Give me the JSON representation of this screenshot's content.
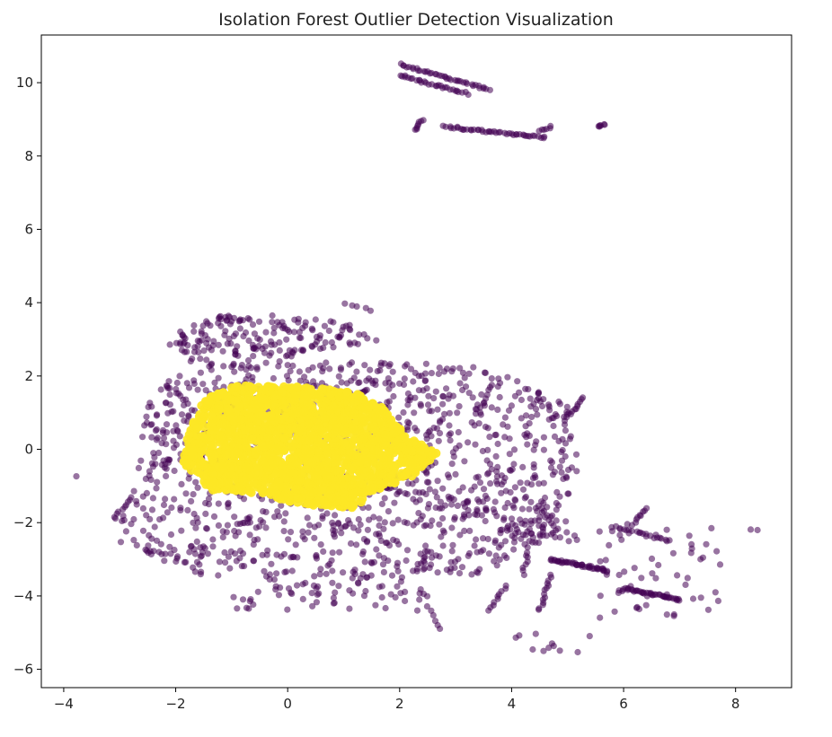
{
  "chart_data": {
    "type": "scatter",
    "title": "Isolation Forest Outlier Detection Visualization",
    "xlabel": "",
    "ylabel": "",
    "xlim": [
      -4.4,
      9.0
    ],
    "ylim": [
      -6.5,
      11.3
    ],
    "xticks": [
      -4,
      -2,
      0,
      2,
      4,
      6,
      8
    ],
    "yticks": [
      -6,
      -4,
      -2,
      0,
      2,
      4,
      6,
      8,
      10
    ],
    "xtick_labels": [
      "−4",
      "−2",
      "0",
      "2",
      "4",
      "6",
      "8"
    ],
    "ytick_labels": [
      "−6",
      "−4",
      "−2",
      "0",
      "2",
      "4",
      "6",
      "8",
      "10"
    ],
    "grid": false,
    "legend": "none",
    "colors": {
      "outlier": "#440154",
      "inlier": "#fde725"
    },
    "series": [
      {
        "role": "outlier",
        "regions": [
          {
            "kind": "polygon",
            "vertices": [
              [
                -3.1,
                -2.6
              ],
              [
                -2.8,
                -1.0
              ],
              [
                -2.5,
                1.2
              ],
              [
                -1.8,
                2.5
              ],
              [
                3.5,
                2.3
              ],
              [
                5.0,
                1.2
              ],
              [
                5.2,
                -0.5
              ],
              [
                4.8,
                -2.3
              ],
              [
                3.5,
                -3.4
              ],
              [
                0.5,
                -3.6
              ],
              [
                -1.5,
                -3.5
              ]
            ],
            "n": 1300
          },
          {
            "kind": "polygon",
            "vertices": [
              [
                -2.2,
                3.0
              ],
              [
                -1.5,
                3.6
              ],
              [
                -0.5,
                3.7
              ],
              [
                1.0,
                3.5
              ],
              [
                1.8,
                3.0
              ],
              [
                0.0,
                2.5
              ],
              [
                -2.0,
                2.6
              ]
            ],
            "n": 170
          },
          {
            "kind": "line",
            "from": [
              2.0,
              10.5
            ],
            "to": [
              3.6,
              9.8
            ],
            "n": 40
          },
          {
            "kind": "line",
            "from": [
              2.0,
              10.2
            ],
            "to": [
              3.2,
              9.7
            ],
            "n": 30
          },
          {
            "kind": "line",
            "from": [
              2.8,
              8.8
            ],
            "to": [
              4.6,
              8.5
            ],
            "n": 45
          },
          {
            "kind": "line",
            "from": [
              2.3,
              8.7
            ],
            "to": [
              2.4,
              9.0
            ],
            "n": 8
          },
          {
            "kind": "line",
            "from": [
              4.5,
              8.7
            ],
            "to": [
              4.7,
              8.8
            ],
            "n": 6
          },
          {
            "kind": "line",
            "from": [
              5.55,
              8.8
            ],
            "to": [
              5.65,
              8.85
            ],
            "n": 6
          },
          {
            "kind": "line",
            "from": [
              4.7,
              -3.0
            ],
            "to": [
              5.7,
              -3.3
            ],
            "n": 45
          },
          {
            "kind": "line",
            "from": [
              6.0,
              -3.8
            ],
            "to": [
              7.0,
              -4.1
            ],
            "n": 40
          },
          {
            "kind": "line",
            "from": [
              5.8,
              -2.1
            ],
            "to": [
              6.8,
              -2.5
            ],
            "n": 20
          },
          {
            "kind": "line",
            "from": [
              4.5,
              -4.4
            ],
            "to": [
              4.7,
              -3.4
            ],
            "n": 14
          },
          {
            "kind": "line",
            "from": [
              4.2,
              -3.4
            ],
            "to": [
              4.3,
              -2.8
            ],
            "n": 8
          },
          {
            "kind": "line",
            "from": [
              3.6,
              -4.4
            ],
            "to": [
              3.9,
              -3.7
            ],
            "n": 10
          },
          {
            "kind": "line",
            "from": [
              6.2,
              -2.0
            ],
            "to": [
              6.4,
              -1.6
            ],
            "n": 8
          },
          {
            "kind": "line",
            "from": [
              -3.1,
              -1.9
            ],
            "to": [
              -2.8,
              -1.3
            ],
            "n": 10
          },
          {
            "kind": "line",
            "from": [
              5.0,
              0.9
            ],
            "to": [
              5.3,
              1.4
            ],
            "n": 10
          },
          {
            "kind": "line",
            "from": [
              2.5,
              -4.3
            ],
            "to": [
              2.7,
              -4.9
            ],
            "n": 6
          },
          {
            "kind": "line",
            "from": [
              1.5,
              3.8
            ],
            "to": [
              1.0,
              4.0
            ],
            "n": 5
          },
          {
            "kind": "line",
            "from": [
              -3.8,
              -0.75
            ],
            "to": [
              -3.8,
              -0.75
            ],
            "n": 1
          },
          {
            "kind": "line",
            "from": [
              8.3,
              -2.2
            ],
            "to": [
              8.4,
              -2.2
            ],
            "n": 2
          },
          {
            "kind": "line",
            "from": [
              4.6,
              -5.5
            ],
            "to": [
              4.7,
              -5.3
            ],
            "n": 3
          },
          {
            "kind": "polygon",
            "vertices": [
              [
                3.8,
                -1.8
              ],
              [
                5.0,
                -1.9
              ],
              [
                5.2,
                -2.5
              ],
              [
                3.8,
                -2.6
              ]
            ],
            "n": 45
          },
          {
            "kind": "polygon",
            "vertices": [
              [
                5.5,
                -2.0
              ],
              [
                7.8,
                -2.0
              ],
              [
                7.8,
                -4.6
              ],
              [
                5.5,
                -4.6
              ]
            ],
            "n": 60
          },
          {
            "kind": "polygon",
            "vertices": [
              [
                -1.0,
                -3.6
              ],
              [
                2.5,
                -3.6
              ],
              [
                2.5,
                -4.4
              ],
              [
                -1.0,
                -4.4
              ]
            ],
            "n": 60
          },
          {
            "kind": "polygon",
            "vertices": [
              [
                4.0,
                -4.6
              ],
              [
                5.5,
                -4.6
              ],
              [
                5.5,
                -5.6
              ],
              [
                4.0,
                -5.6
              ]
            ],
            "n": 8
          }
        ]
      },
      {
        "role": "inlier",
        "regions": [
          {
            "kind": "polygon",
            "vertices": [
              [
                -1.75,
                0.5
              ],
              [
                -1.5,
                1.35
              ],
              [
                -0.9,
                1.75
              ],
              [
                0.3,
                1.7
              ],
              [
                1.2,
                1.55
              ],
              [
                1.7,
                1.15
              ],
              [
                2.1,
                0.4
              ],
              [
                2.7,
                -0.15
              ],
              [
                2.2,
                -0.75
              ],
              [
                1.5,
                -1.2
              ],
              [
                1.2,
                -1.6
              ],
              [
                0.2,
                -1.5
              ],
              [
                -0.5,
                -1.2
              ],
              [
                -1.4,
                -1.1
              ],
              [
                -1.9,
                -0.3
              ]
            ],
            "n": 1800
          }
        ]
      }
    ]
  }
}
